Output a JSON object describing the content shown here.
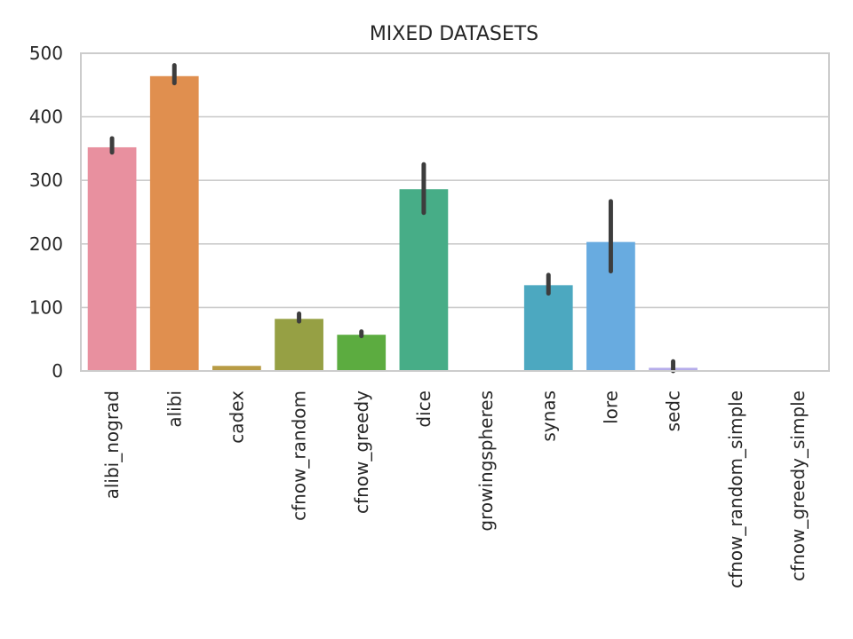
{
  "chart_data": {
    "type": "bar",
    "title": "MIXED DATASETS",
    "xlabel": "",
    "ylabel": "",
    "ylim": [
      0,
      500
    ],
    "yticks": [
      0,
      100,
      200,
      300,
      400,
      500
    ],
    "grid": "y-only",
    "categories": [
      "alibi_nograd",
      "alibi",
      "cadex",
      "cfnow_random",
      "cfnow_greedy",
      "dice",
      "growingspheres",
      "synas",
      "lore",
      "sedc",
      "cfnow_random_simple",
      "cfnow_greedy_simple"
    ],
    "values": [
      352,
      464,
      8,
      82,
      57,
      286,
      1,
      135,
      203,
      5,
      1,
      1
    ],
    "error_low": [
      344,
      453,
      8,
      78,
      55,
      249,
      1,
      122,
      157,
      0,
      1,
      1
    ],
    "error_high": [
      366,
      481,
      8,
      90,
      62,
      325,
      1,
      151,
      267,
      15,
      1,
      1
    ],
    "colors": [
      "#e8909f",
      "#e08f4f",
      "#b89c45",
      "#96a044",
      "#5cac40",
      "#47ad87",
      "#49ab98",
      "#4ca8c0",
      "#68abe0",
      "#b5acea",
      "#e3a1e8",
      "#eaa0c4"
    ]
  }
}
